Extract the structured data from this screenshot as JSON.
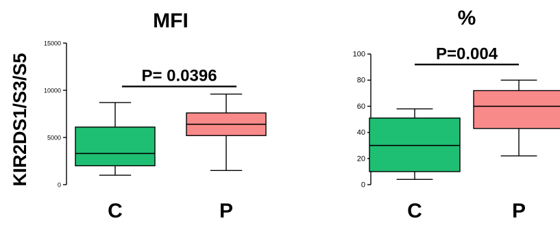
{
  "y_axis_shared_label": "KIR2DS1/S3/S5",
  "colors": {
    "C": "#1fbf73",
    "P": "#f98a8a"
  },
  "chart_data": [
    {
      "type": "box",
      "title": "MFI",
      "ylim": [
        0,
        15000
      ],
      "yticks": [
        0,
        5000,
        10000,
        15000
      ],
      "categories": [
        "C",
        "P"
      ],
      "boxes": [
        {
          "category": "C",
          "min": 1000,
          "q1": 2000,
          "median": 3300,
          "q3": 6100,
          "max": 8700
        },
        {
          "category": "P",
          "min": 1500,
          "q1": 5200,
          "median": 6400,
          "q3": 7600,
          "max": 9600
        }
      ],
      "significance": {
        "label": "P= 0.0396",
        "y": 10400
      }
    },
    {
      "type": "box",
      "title": "%",
      "ylim": [
        0,
        100
      ],
      "yticks": [
        0,
        20,
        40,
        60,
        80,
        100
      ],
      "categories": [
        "C",
        "P"
      ],
      "boxes": [
        {
          "category": "C",
          "min": 4,
          "q1": 10,
          "median": 30,
          "q3": 51,
          "max": 58
        },
        {
          "category": "P",
          "min": 22,
          "q1": 43,
          "median": 60,
          "q3": 72,
          "max": 80
        }
      ],
      "significance": {
        "label": "P=0.004",
        "y": 92
      }
    }
  ]
}
